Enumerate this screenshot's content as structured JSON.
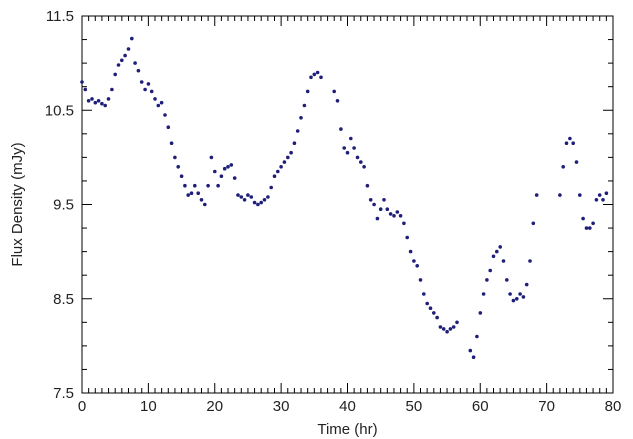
{
  "chart_data": {
    "type": "scatter",
    "xlabel": "Time (hr)",
    "ylabel": "Flux Density (mJy)",
    "xlim": [
      0,
      80
    ],
    "ylim": [
      7.5,
      11.5
    ],
    "x_ticks": [
      0,
      10,
      20,
      30,
      40,
      50,
      60,
      70,
      80
    ],
    "x_tick_labels": [
      "0",
      "10",
      "20",
      "30",
      "40",
      "50",
      "60",
      "70",
      "80"
    ],
    "y_ticks": [
      7.5,
      8.5,
      9.5,
      10.5,
      11.5
    ],
    "y_tick_labels": [
      "7.5",
      "8.5",
      "9.5",
      "10.5",
      "11.5"
    ],
    "grid": false,
    "marker_color": "#1f1f7a",
    "series": [
      {
        "points": [
          [
            0.0,
            10.8
          ],
          [
            0.5,
            10.72
          ],
          [
            1.0,
            10.6
          ],
          [
            1.5,
            10.62
          ],
          [
            2.0,
            10.58
          ],
          [
            2.5,
            10.6
          ],
          [
            3.0,
            10.57
          ],
          [
            3.5,
            10.55
          ],
          [
            4.0,
            10.62
          ],
          [
            4.5,
            10.72
          ],
          [
            5.0,
            10.88
          ],
          [
            5.5,
            10.98
          ],
          [
            6.0,
            11.03
          ],
          [
            6.5,
            11.08
          ],
          [
            7.0,
            11.15
          ],
          [
            7.5,
            11.26
          ],
          [
            8.0,
            11.0
          ],
          [
            8.5,
            10.92
          ],
          [
            9.0,
            10.8
          ],
          [
            9.5,
            10.72
          ],
          [
            10.0,
            10.78
          ],
          [
            10.5,
            10.7
          ],
          [
            11.0,
            10.62
          ],
          [
            11.5,
            10.55
          ],
          [
            12.0,
            10.58
          ],
          [
            12.5,
            10.45
          ],
          [
            13.0,
            10.32
          ],
          [
            13.5,
            10.15
          ],
          [
            14.0,
            10.0
          ],
          [
            14.5,
            9.9
          ],
          [
            15.0,
            9.8
          ],
          [
            15.5,
            9.7
          ],
          [
            16.0,
            9.6
          ],
          [
            16.5,
            9.62
          ],
          [
            17.0,
            9.7
          ],
          [
            17.5,
            9.62
          ],
          [
            18.0,
            9.55
          ],
          [
            18.5,
            9.5
          ],
          [
            19.0,
            9.7
          ],
          [
            19.5,
            10.0
          ],
          [
            20.0,
            9.85
          ],
          [
            20.5,
            9.7
          ],
          [
            21.0,
            9.8
          ],
          [
            21.5,
            9.88
          ],
          [
            22.0,
            9.9
          ],
          [
            22.5,
            9.92
          ],
          [
            23.0,
            9.78
          ],
          [
            23.5,
            9.6
          ],
          [
            24.0,
            9.58
          ],
          [
            24.5,
            9.55
          ],
          [
            25.0,
            9.6
          ],
          [
            25.5,
            9.58
          ],
          [
            26.0,
            9.52
          ],
          [
            26.5,
            9.5
          ],
          [
            27.0,
            9.52
          ],
          [
            27.5,
            9.55
          ],
          [
            28.0,
            9.58
          ],
          [
            28.5,
            9.68
          ],
          [
            29.0,
            9.8
          ],
          [
            29.5,
            9.85
          ],
          [
            30.0,
            9.9
          ],
          [
            30.5,
            9.95
          ],
          [
            31.0,
            10.0
          ],
          [
            31.5,
            10.05
          ],
          [
            32.0,
            10.15
          ],
          [
            32.5,
            10.28
          ],
          [
            33.0,
            10.42
          ],
          [
            33.5,
            10.55
          ],
          [
            34.0,
            10.7
          ],
          [
            34.5,
            10.85
          ],
          [
            35.0,
            10.88
          ],
          [
            35.5,
            10.9
          ],
          [
            36.0,
            10.85
          ],
          [
            38.0,
            10.7
          ],
          [
            38.5,
            10.6
          ],
          [
            39.0,
            10.3
          ],
          [
            39.5,
            10.1
          ],
          [
            40.0,
            10.05
          ],
          [
            40.5,
            10.2
          ],
          [
            41.0,
            10.1
          ],
          [
            41.5,
            10.0
          ],
          [
            42.0,
            9.95
          ],
          [
            42.5,
            9.9
          ],
          [
            43.0,
            9.7
          ],
          [
            43.5,
            9.55
          ],
          [
            44.0,
            9.5
          ],
          [
            44.5,
            9.35
          ],
          [
            45.0,
            9.45
          ],
          [
            45.5,
            9.55
          ],
          [
            46.0,
            9.45
          ],
          [
            46.5,
            9.4
          ],
          [
            47.0,
            9.38
          ],
          [
            47.5,
            9.42
          ],
          [
            48.0,
            9.38
          ],
          [
            48.5,
            9.3
          ],
          [
            49.0,
            9.15
          ],
          [
            49.5,
            9.0
          ],
          [
            50.0,
            8.9
          ],
          [
            50.5,
            8.85
          ],
          [
            51.0,
            8.7
          ],
          [
            51.5,
            8.55
          ],
          [
            52.0,
            8.45
          ],
          [
            52.5,
            8.4
          ],
          [
            53.0,
            8.35
          ],
          [
            53.5,
            8.3
          ],
          [
            54.0,
            8.2
          ],
          [
            54.5,
            8.18
          ],
          [
            55.0,
            8.15
          ],
          [
            55.5,
            8.18
          ],
          [
            56.0,
            8.2
          ],
          [
            56.5,
            8.25
          ],
          [
            58.5,
            7.95
          ],
          [
            59.0,
            7.88
          ],
          [
            59.5,
            8.1
          ],
          [
            60.0,
            8.35
          ],
          [
            60.5,
            8.55
          ],
          [
            61.0,
            8.7
          ],
          [
            61.5,
            8.8
          ],
          [
            62.0,
            8.95
          ],
          [
            62.5,
            9.0
          ],
          [
            63.0,
            9.05
          ],
          [
            63.5,
            8.9
          ],
          [
            64.0,
            8.7
          ],
          [
            64.5,
            8.55
          ],
          [
            65.0,
            8.48
          ],
          [
            65.5,
            8.5
          ],
          [
            66.0,
            8.55
          ],
          [
            66.5,
            8.52
          ],
          [
            67.0,
            8.65
          ],
          [
            67.5,
            8.9
          ],
          [
            68.0,
            9.3
          ],
          [
            68.5,
            9.6
          ],
          [
            72.0,
            9.6
          ],
          [
            72.5,
            9.9
          ],
          [
            73.0,
            10.15
          ],
          [
            73.5,
            10.2
          ],
          [
            74.0,
            10.15
          ],
          [
            74.5,
            9.95
          ],
          [
            75.0,
            9.6
          ],
          [
            75.5,
            9.35
          ],
          [
            76.0,
            9.25
          ],
          [
            76.5,
            9.25
          ],
          [
            77.0,
            9.3
          ],
          [
            77.5,
            9.55
          ],
          [
            78.0,
            9.6
          ],
          [
            78.5,
            9.55
          ],
          [
            79.0,
            9.62
          ]
        ]
      }
    ]
  }
}
